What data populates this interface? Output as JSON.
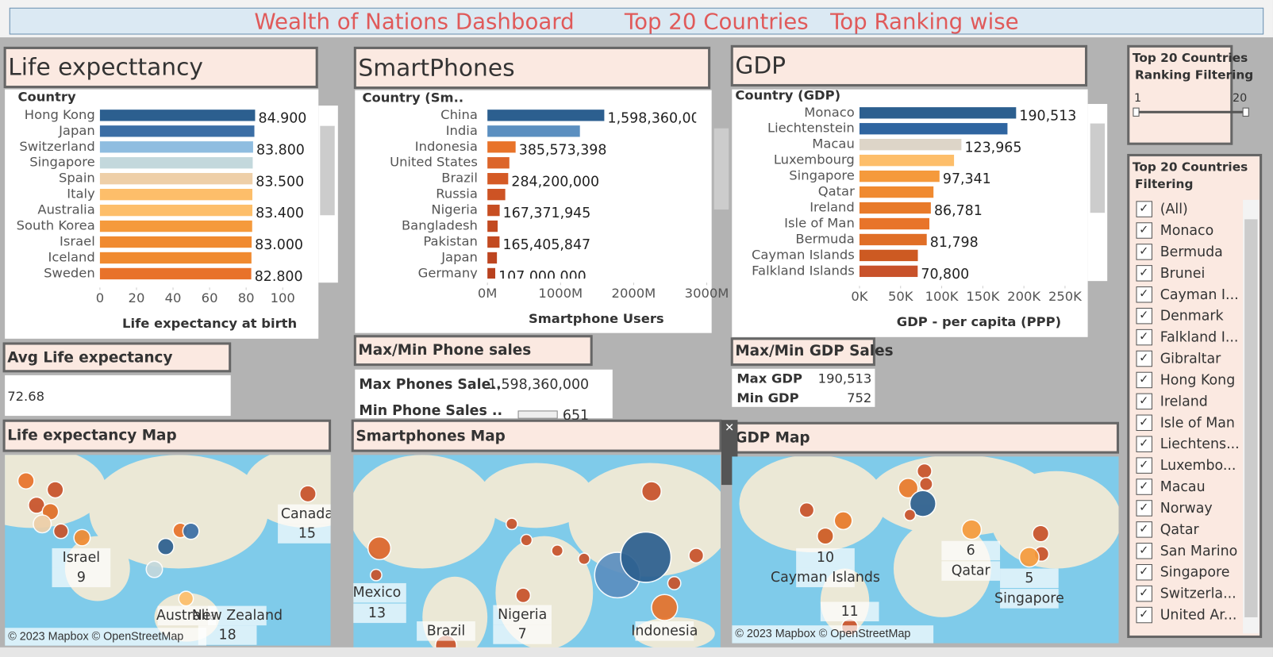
{
  "title": [
    "Wealth of Nations Dashboard",
    "Top 20 Countries",
    "Top Ranking wise"
  ],
  "chart_data": [
    {
      "type": "hbar",
      "title": "Life expecttancy",
      "axis_header": "Country",
      "x_label": "Life expectancy at birth",
      "categories": [
        "Hong Kong",
        "Japan",
        "Switzerland",
        "Singapore",
        "Spain",
        "Italy",
        "Australia",
        "South Korea",
        "Israel",
        "Iceland",
        "Sweden"
      ],
      "values": [
        84.9,
        84.5,
        83.8,
        83.6,
        83.5,
        83.4,
        83.4,
        83.3,
        83.0,
        82.9,
        82.8
      ],
      "value_labels": [
        "84.900",
        null,
        "83.800",
        null,
        "83.500",
        null,
        "83.400",
        null,
        "83.000",
        null,
        "82.800"
      ],
      "colors": [
        "#2c5f8f",
        "#3b6ea5",
        "#8fbde0",
        "#c3d8dc",
        "#eecfa8",
        "#fdbe6a",
        "#fdbe6a",
        "#f59a3c",
        "#f08a30",
        "#f08a30",
        "#e8722a"
      ],
      "xlim": [
        0,
        100
      ],
      "xticks": [
        0,
        20,
        40,
        60,
        80,
        100
      ]
    },
    {
      "type": "hbar",
      "title": "SmartPhones",
      "axis_header": "Country (Sm..",
      "x_label": "Smartphone Users",
      "categories": [
        "China",
        "India",
        "Indonesia",
        "United States",
        "Brazil",
        "Russia",
        "Nigeria",
        "Bangladesh",
        "Pakistan",
        "Japan",
        "Germany"
      ],
      "values": [
        1598360000,
        1265000000,
        385573398,
        300000000,
        284200000,
        244000000,
        167371945,
        140000000,
        165405847,
        130000000,
        107000000
      ],
      "value_labels": [
        "1,598,360,000",
        null,
        "385,573,398",
        null,
        "284,200,000",
        null,
        "167,371,945",
        null,
        "165,405,847",
        null,
        "107,000,000"
      ],
      "colors": [
        "#2c5f8f",
        "#5b8fc0",
        "#e8732a",
        "#dc652a",
        "#d45a25",
        "#cd5324",
        "#c74e22",
        "#c24a21",
        "#c24a21",
        "#bd4520",
        "#b8411e"
      ],
      "xlim": [
        0,
        3000000000
      ],
      "xticks": [
        {
          "value": 0,
          "label": "0M"
        },
        {
          "value": 1000000000,
          "label": "1000M"
        },
        {
          "value": 2000000000,
          "label": "2000M"
        },
        {
          "value": 3000000000,
          "label": "3000M"
        }
      ]
    },
    {
      "type": "hbar",
      "title": "GDP",
      "axis_header": "Country (GDP)",
      "x_label": "GDP - per capita (PPP)",
      "categories": [
        "Monaco",
        "Liechtenstein",
        "Macau",
        "Luxembourg",
        "Singapore",
        "Qatar",
        "Ireland",
        "Isle of Man",
        "Bermuda",
        "Cayman Islands",
        "Falkland Islands"
      ],
      "values": [
        190513,
        180000,
        123965,
        115000,
        97341,
        90000,
        86781,
        85000,
        81798,
        71000,
        70800
      ],
      "value_labels": [
        "190,513",
        null,
        "123,965",
        null,
        "97,341",
        null,
        "86,781",
        null,
        "81,798",
        null,
        "70,800"
      ],
      "colors": [
        "#2c5f8f",
        "#2f65a0",
        "#ddd5c8",
        "#fdbe6a",
        "#f59a3c",
        "#f08a30",
        "#e87a2a",
        "#e8742a",
        "#e06e26",
        "#cd5a22",
        "#c8522a"
      ],
      "xlim": [
        0,
        250000
      ],
      "xticks": [
        {
          "value": 0,
          "label": "0K"
        },
        {
          "value": 50000,
          "label": "50K"
        },
        {
          "value": 100000,
          "label": "100K"
        },
        {
          "value": 150000,
          "label": "150K"
        },
        {
          "value": 200000,
          "label": "200K"
        },
        {
          "value": 250000,
          "label": "250K"
        }
      ]
    }
  ],
  "avg_life": {
    "title": "Avg Life expectancy",
    "value": "72.68"
  },
  "phone_sales": {
    "title": "Max/Min Phone sales",
    "rows": [
      [
        "Max Phones Sale..",
        "1,598,360,000"
      ],
      [
        "Min Phone Sales ..",
        "651"
      ]
    ]
  },
  "gdp_sales": {
    "title": "Max/Min GDP Sales",
    "rows": [
      [
        "Max GDP",
        "190,513"
      ],
      [
        "Min GDP",
        "752"
      ]
    ]
  },
  "maps": [
    {
      "title": "Life expectancy Map",
      "labels": [
        "Canada",
        "15",
        "Israel",
        "9",
        "Australia",
        "New Zealand",
        "18"
      ]
    },
    {
      "title": "Smartphones Map",
      "labels": [
        "Mexico",
        "13",
        "Brazil",
        "Nigeria",
        "7",
        "Indonesia"
      ]
    },
    {
      "title": "GDP Map",
      "labels": [
        "10",
        "Cayman Islands",
        "6",
        "Qatar",
        "5",
        "Singapore",
        "11"
      ]
    }
  ],
  "attribution": "© 2023 Mapbox © OpenStreetMap",
  "ranking_filter": {
    "title": [
      "Top 20 Countries",
      "Ranking Filtering"
    ],
    "min": "1",
    "max": "20"
  },
  "country_filter": {
    "title": [
      "Top 20 Countries",
      "Filtering"
    ],
    "items": [
      "(All)",
      "Monaco",
      "Bermuda",
      "Brunei",
      "Cayman I...",
      "Denmark",
      "Falkland I...",
      "Gibraltar",
      "Hong Kong",
      "Ireland",
      "Isle of Man",
      "Liechtens...",
      "Luxembo...",
      "Macau",
      "Norway",
      "Qatar",
      "San Marino",
      "Singapore",
      "Switzerla...",
      "United Ar..."
    ]
  }
}
